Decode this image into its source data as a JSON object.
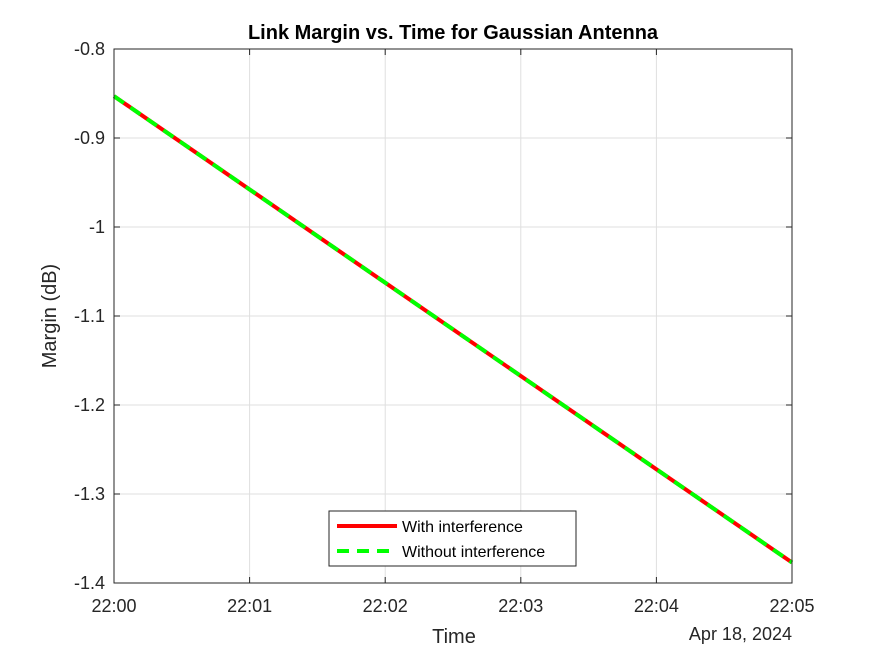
{
  "chart_data": {
    "type": "line",
    "title": "Link Margin vs. Time for Gaussian Antenna",
    "xlabel": "Time",
    "ylabel": "Margin (dB)",
    "x_secondary_label": "Apr 18, 2024",
    "x_ticks": [
      "22:00",
      "22:01",
      "22:02",
      "22:03",
      "22:04",
      "22:05"
    ],
    "x_tick_values": [
      "22:00",
      "22:01",
      "22:02",
      "22:03",
      "22:04",
      "22:05"
    ],
    "y_ticks": [
      "-0.8",
      "-0.9",
      "-1",
      "-1.1",
      "-1.2",
      "-1.3",
      "-1.4"
    ],
    "y_tick_values": [
      -0.8,
      -0.9,
      -1.0,
      -1.1,
      -1.2,
      -1.3,
      -1.4
    ],
    "xlim": [
      "22:00",
      "22:05"
    ],
    "ylim": [
      -1.4,
      -0.8
    ],
    "grid": true,
    "legend_position": "bottom-center",
    "x": [
      "22:00",
      "22:05"
    ],
    "series": [
      {
        "name": "With interference",
        "values": [
          -0.853,
          -1.377
        ],
        "color": "#ff0000",
        "style": "solid"
      },
      {
        "name": "Without interference",
        "values": [
          -0.853,
          -1.377
        ],
        "color": "#00ff00",
        "style": "dashed"
      }
    ]
  }
}
